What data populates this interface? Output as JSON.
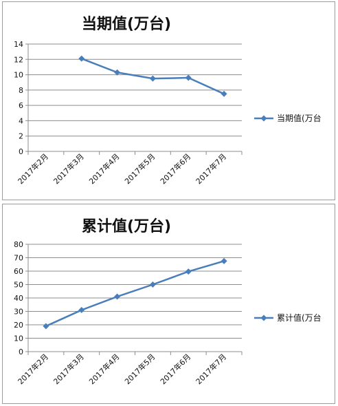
{
  "chart_data": [
    {
      "type": "line",
      "title": "当期值(万台)",
      "categories": [
        "2017年2月",
        "2017年3月",
        "2017年4月",
        "2017年5月",
        "2017年6月",
        "2017年7月"
      ],
      "series": [
        {
          "name": "当期值(万台",
          "values": [
            null,
            12.1,
            10.3,
            9.5,
            9.6,
            7.5
          ]
        }
      ],
      "ylim": [
        0,
        14
      ],
      "yticks": [
        0,
        2,
        4,
        6,
        8,
        10,
        12,
        14
      ],
      "grid": true,
      "legend": "right",
      "color": "#4a7ebb"
    },
    {
      "type": "line",
      "title": "累计值(万台)",
      "categories": [
        "2017年2月",
        "2017年3月",
        "2017年4月",
        "2017年5月",
        "2017年6月",
        "2017年7月"
      ],
      "series": [
        {
          "name": "累计值(万台",
          "values": [
            19,
            31,
            41,
            50,
            59.7,
            67.5
          ]
        }
      ],
      "ylim": [
        0,
        80
      ],
      "yticks": [
        0,
        10,
        20,
        30,
        40,
        50,
        60,
        70,
        80
      ],
      "grid": true,
      "legend": "right",
      "color": "#4a7ebb"
    }
  ]
}
